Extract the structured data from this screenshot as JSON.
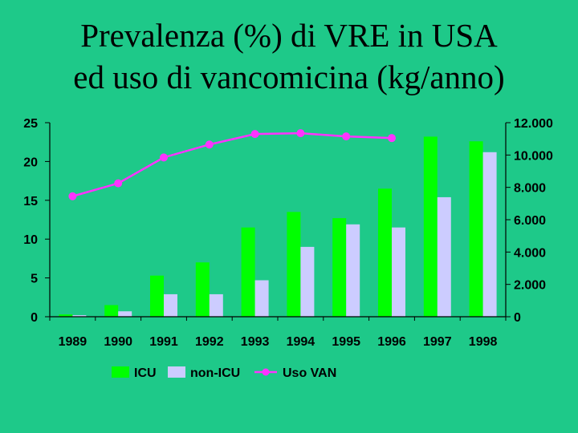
{
  "title_lines": [
    "Prevalenza (%) di VRE in USA",
    "ed uso di vancomicina (kg/anno)"
  ],
  "colors": {
    "background": "#1ec989",
    "icu": "#00ff00",
    "non_icu": "#ccccff",
    "uso_van": "#ff33ff",
    "axis": "#000000"
  },
  "chart_data": {
    "type": "bar",
    "title": "Prevalenza (%) di VRE in USA ed uso di vancomicina (kg/anno)",
    "categories": [
      "1989",
      "1990",
      "1991",
      "1992",
      "1993",
      "1994",
      "1995",
      "1996",
      "1997",
      "1998"
    ],
    "series": [
      {
        "name": "ICU",
        "type": "bar",
        "axis": "left",
        "values": [
          0.3,
          1.5,
          5.3,
          7.0,
          11.5,
          13.5,
          12.7,
          16.5,
          23.2,
          22.6
        ]
      },
      {
        "name": "non-ICU",
        "type": "bar",
        "axis": "left",
        "values": [
          0.2,
          0.7,
          2.9,
          2.9,
          4.7,
          9.0,
          11.9,
          11.5,
          15.4,
          21.2
        ]
      },
      {
        "name": "Uso VAN",
        "type": "line",
        "axis": "right",
        "values": [
          7450,
          8250,
          9850,
          10650,
          11300,
          11350,
          11150,
          11050,
          null,
          null
        ]
      }
    ],
    "left_axis": {
      "min": 0,
      "max": 25,
      "ticks": [
        "0",
        "5",
        "10",
        "15",
        "20",
        "25"
      ]
    },
    "right_axis": {
      "min": 0,
      "max": 12000,
      "ticks": [
        "0",
        "2.000",
        "4.000",
        "6.000",
        "8.000",
        "10.000",
        "12.000"
      ]
    },
    "legend_position": "bottom"
  }
}
